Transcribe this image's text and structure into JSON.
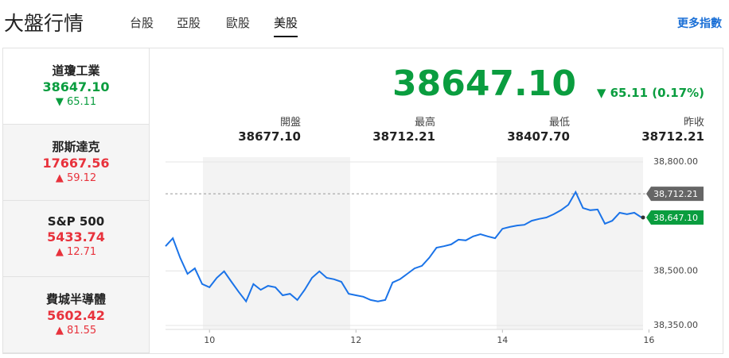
{
  "header": {
    "title": "大盤行情",
    "tabs": [
      "台股",
      "亞股",
      "歐股",
      "美股"
    ],
    "active_tab": 3,
    "more_link": "更多指數"
  },
  "indices": [
    {
      "name": "道瓊工業",
      "value": "38647.10",
      "change": "65.11",
      "direction": "down"
    },
    {
      "name": "那斯達克",
      "value": "17667.56",
      "change": "59.12",
      "direction": "up"
    },
    {
      "name": "S&P 500",
      "value": "5433.74",
      "change": "12.71",
      "direction": "up"
    },
    {
      "name": "費城半導體",
      "value": "5602.42",
      "change": "81.55",
      "direction": "up"
    }
  ],
  "quote": {
    "value": "38647.10",
    "change": "65.11 (0.17%)",
    "direction": "down",
    "stats": [
      {
        "label": "開盤",
        "value": "38677.10"
      },
      {
        "label": "最高",
        "value": "38712.21"
      },
      {
        "label": "最低",
        "value": "38407.70"
      },
      {
        "label": "昨收",
        "value": "38712.21"
      }
    ]
  },
  "chart_data": {
    "type": "line",
    "color": "#1a73e8",
    "grid": true,
    "x": [
      9.4,
      9.5,
      9.6,
      9.7,
      9.8,
      9.9,
      10.0,
      10.1,
      10.2,
      10.3,
      10.4,
      10.5,
      10.6,
      10.7,
      10.8,
      10.9,
      11.0,
      11.1,
      11.2,
      11.3,
      11.4,
      11.5,
      11.6,
      11.7,
      11.8,
      11.9,
      12.0,
      12.1,
      12.2,
      12.3,
      12.4,
      12.5,
      12.6,
      12.7,
      12.8,
      12.9,
      13.0,
      13.1,
      13.2,
      13.3,
      13.4,
      13.5,
      13.6,
      13.7,
      13.8,
      13.9,
      14.0,
      14.1,
      14.2,
      14.3,
      14.4,
      14.5,
      14.6,
      14.7,
      14.8,
      14.9,
      15.0,
      15.1,
      15.2,
      15.3,
      15.4,
      15.5,
      15.6,
      15.7,
      15.8,
      15.9
    ],
    "values": [
      38568,
      38590,
      38536,
      38492,
      38507,
      38464,
      38455,
      38481,
      38499,
      38470,
      38442,
      38416,
      38464,
      38448,
      38459,
      38455,
      38433,
      38437,
      38420,
      38448,
      38481,
      38499,
      38481,
      38477,
      38470,
      38437,
      38433,
      38429,
      38420,
      38416,
      38420,
      38468,
      38477,
      38492,
      38507,
      38514,
      38536,
      38564,
      38568,
      38573,
      38586,
      38584,
      38595,
      38601,
      38595,
      38590,
      38616,
      38621,
      38625,
      38627,
      38638,
      38643,
      38647,
      38656,
      38667,
      38682,
      38717,
      38673,
      38667,
      38669,
      38630,
      38638,
      38660,
      38656,
      38660,
      38647.1
    ],
    "xlim": [
      9.4,
      15.92
    ],
    "ylim": [
      38339,
      38813
    ],
    "xticks": [
      10,
      12,
      14,
      16
    ],
    "yticks": [
      {
        "value": 38350,
        "label": "38,350.00"
      },
      {
        "value": 38500,
        "label": "38,500.00"
      },
      {
        "value": 38800,
        "label": "38,800.00"
      }
    ],
    "reference": {
      "value": 38712.21,
      "label": "38,712.21"
    },
    "last": {
      "value": 38647.1,
      "label": "38,647.10"
    }
  }
}
